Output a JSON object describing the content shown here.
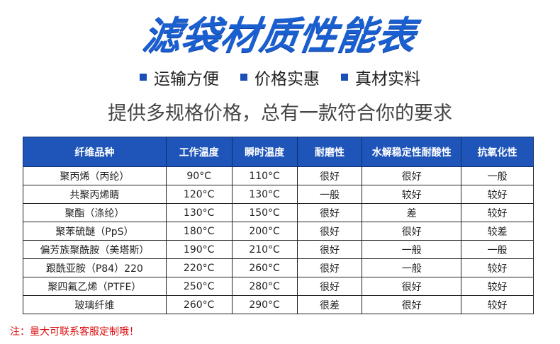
{
  "title": "滤袋材质性能表",
  "bullets": [
    "运输方便",
    "价格实惠",
    "真材实料"
  ],
  "subtitle": "提供多规格价格，总有一款符合你的要求",
  "table": {
    "headers": [
      "纤维品种",
      "工作温度",
      "瞬时温度",
      "耐磨性",
      "水解稳定性耐酸性",
      "抗氧化性"
    ],
    "rows": [
      [
        "聚丙烯（丙纶）",
        "90°C",
        "110°C",
        "很好",
        "很好",
        "一般"
      ],
      [
        "共聚丙烯睛",
        "120°C",
        "130°C",
        "一般",
        "较好",
        "较好"
      ],
      [
        "聚酯（涤纶）",
        "130°C",
        "150°C",
        "很好",
        "差",
        "较好"
      ],
      [
        "聚苯硫醚（PpS）",
        "180°C",
        "200°C",
        "很好",
        "很好",
        "较差"
      ],
      [
        "偏芳族聚酰胺（美塔斯）",
        "190°C",
        "210°C",
        "很好",
        "一般",
        "一般"
      ],
      [
        "跟酰亚胺（P84）220",
        "220°C",
        "260°C",
        "很好",
        "一般",
        "较好"
      ],
      [
        "聚四氟乙烯（PTFE）",
        "250°C",
        "280°C",
        "很好",
        "很好",
        "较好"
      ],
      [
        "玻璃纤维",
        "260°C",
        "290°C",
        "很差",
        "很好",
        "较好"
      ]
    ]
  },
  "note": "注：量大可联系客服定制哦！",
  "colors": {
    "accent": "#1f55b8",
    "note": "#dd1111"
  }
}
